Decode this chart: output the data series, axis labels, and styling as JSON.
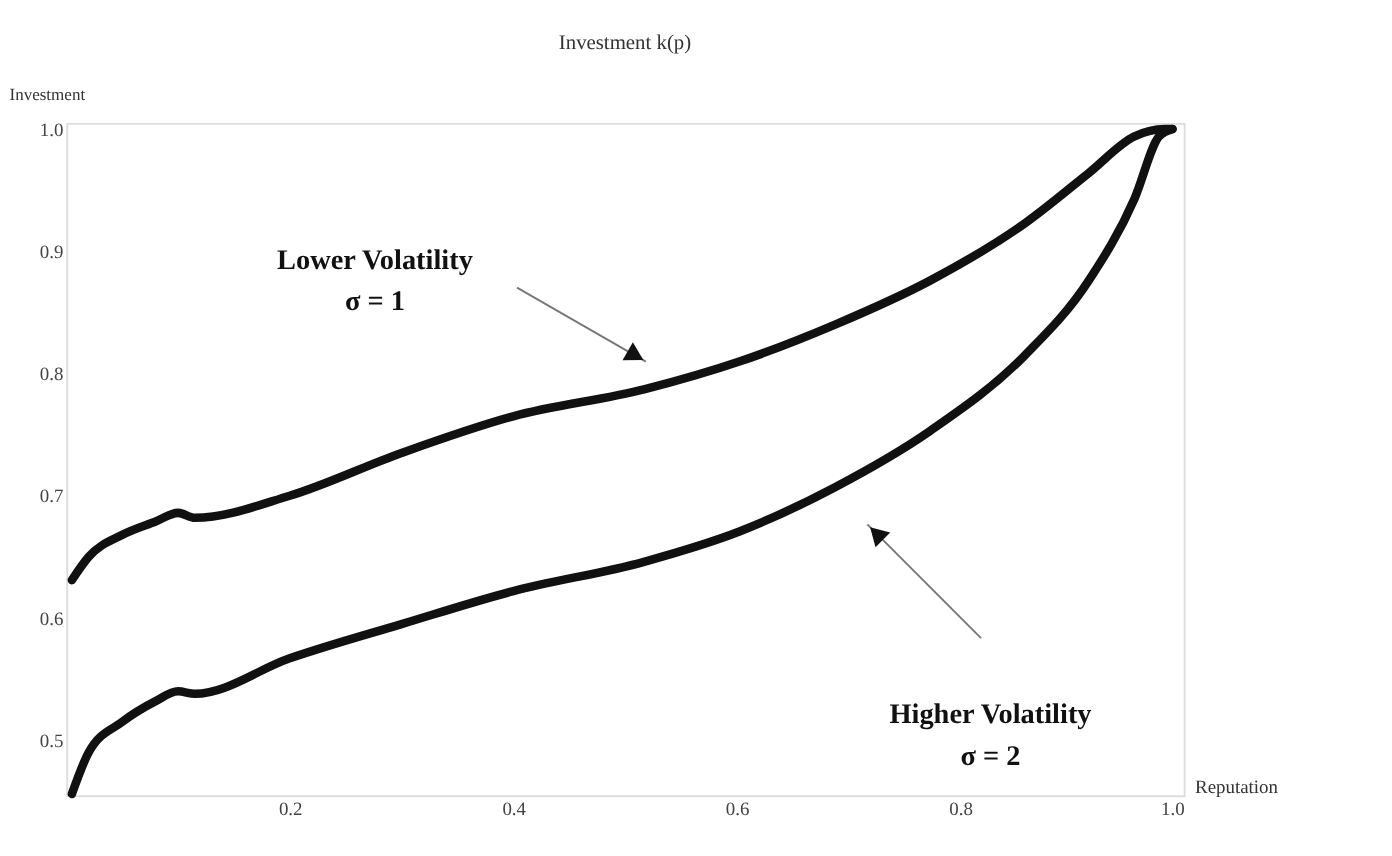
{
  "chart_data": {
    "type": "line",
    "title": "Investment k(p)",
    "xlabel": "Reputation",
    "ylabel": "Investment",
    "series": [
      {
        "color": "#111111",
        "x": [
          0.005,
          0.02,
          0.05,
          0.08,
          0.1,
          0.115,
          0.2,
          0.3,
          0.4,
          0.517,
          0.603,
          0.688,
          0.773,
          0.858,
          0.915,
          0.956,
          0.983,
          0.99
        ],
        "values": [
          0.631,
          0.65,
          0.668,
          0.679,
          0.686,
          0.682,
          0.7,
          0.735,
          0.765,
          0.787,
          0.81,
          0.84,
          0.876,
          0.923,
          0.964,
          0.994,
          1.0,
          1.0
        ]
      },
      {
        "color": "#111111",
        "x": [
          0.005,
          0.02,
          0.05,
          0.08,
          0.1,
          0.115,
          0.2,
          0.3,
          0.4,
          0.517,
          0.603,
          0.688,
          0.773,
          0.858,
          0.915,
          0.956,
          0.978,
          0.99
        ],
        "values": [
          0.456,
          0.49,
          0.515,
          0.532,
          0.54,
          0.538,
          0.567,
          0.595,
          0.622,
          0.646,
          0.671,
          0.707,
          0.753,
          0.815,
          0.876,
          0.943,
          0.994,
          1.0
        ]
      }
    ],
    "annotations": [
      "Lower Volatility\nσ = 1",
      "Higher Volatility\nσ = 2"
    ],
    "xlim": [
      0,
      1.0
    ],
    "ylim": [
      0.455,
      1.005
    ],
    "xticks": [
      0.2,
      0.4,
      0.6,
      0.8,
      {
        "value": 1.0,
        "label": "1.0"
      }
    ],
    "yticks": [
      0.5,
      0.6,
      0.7,
      0.8,
      0.9,
      {
        "value": 1.0,
        "label": "1.0"
      }
    ],
    "grid": false,
    "marker": "none",
    "line_style": "solid"
  }
}
